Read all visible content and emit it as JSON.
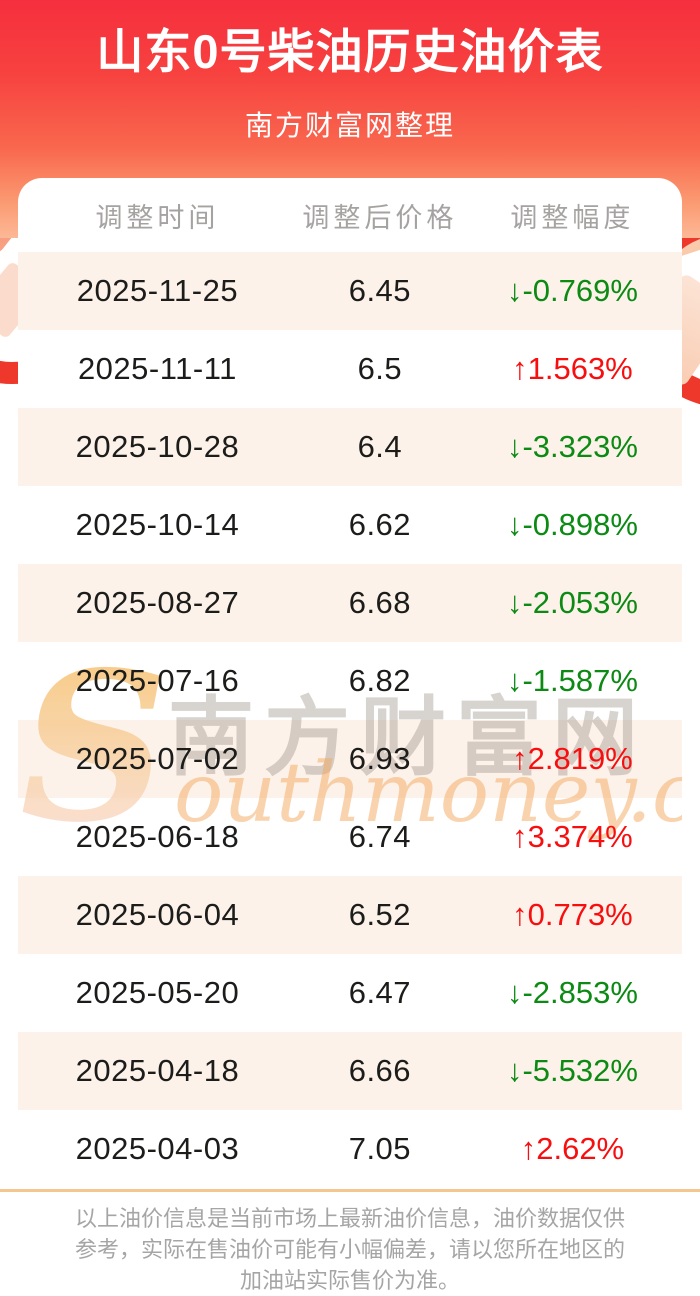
{
  "header": {
    "title": "山东0号柴油历史油价表",
    "subtitle": "南方财富网整理",
    "gradient_top_color": "#f62f3e",
    "gradient_bottom_color": "#fcb896"
  },
  "table": {
    "columns": [
      "调整时间",
      "调整后价格",
      "调整幅度"
    ],
    "rows": [
      {
        "date": "2025-11-25",
        "price": "6.45",
        "change": "-0.769%",
        "direction": "down"
      },
      {
        "date": "2025-11-11",
        "price": "6.5",
        "change": "1.563%",
        "direction": "up"
      },
      {
        "date": "2025-10-28",
        "price": "6.4",
        "change": "-3.323%",
        "direction": "down"
      },
      {
        "date": "2025-10-14",
        "price": "6.62",
        "change": "-0.898%",
        "direction": "down"
      },
      {
        "date": "2025-08-27",
        "price": "6.68",
        "change": "-2.053%",
        "direction": "down"
      },
      {
        "date": "2025-07-16",
        "price": "6.82",
        "change": "-1.587%",
        "direction": "down"
      },
      {
        "date": "2025-07-02",
        "price": "6.93",
        "change": "2.819%",
        "direction": "up"
      },
      {
        "date": "2025-06-18",
        "price": "6.74",
        "change": "3.374%",
        "direction": "up"
      },
      {
        "date": "2025-06-04",
        "price": "6.52",
        "change": "0.773%",
        "direction": "up"
      },
      {
        "date": "2025-05-20",
        "price": "6.47",
        "change": "-2.853%",
        "direction": "down"
      },
      {
        "date": "2025-04-18",
        "price": "6.66",
        "change": "-5.532%",
        "direction": "down"
      },
      {
        "date": "2025-04-03",
        "price": "7.05",
        "change": "2.62%",
        "direction": "up"
      }
    ],
    "up_arrow": "↑",
    "down_arrow": "↓",
    "up_color": "#f80e0e",
    "down_color": "#0c8a14",
    "stripe_color": "#fcf2ea"
  },
  "chart_data": {
    "type": "table",
    "title": "山东0号柴油历史油价表",
    "columns": [
      "调整时间",
      "调整后价格",
      "调整幅度"
    ],
    "x": [
      "2025-11-25",
      "2025-11-11",
      "2025-10-28",
      "2025-10-14",
      "2025-08-27",
      "2025-07-16",
      "2025-07-02",
      "2025-06-18",
      "2025-06-04",
      "2025-05-20",
      "2025-04-18",
      "2025-04-03"
    ],
    "series": [
      {
        "name": "调整后价格",
        "values": [
          6.45,
          6.5,
          6.4,
          6.62,
          6.68,
          6.82,
          6.93,
          6.74,
          6.52,
          6.47,
          6.66,
          7.05
        ]
      },
      {
        "name": "调整幅度(%)",
        "values": [
          -0.769,
          1.563,
          -3.323,
          -0.898,
          -2.053,
          -1.587,
          2.819,
          3.374,
          0.773,
          -2.853,
          -5.532,
          2.62
        ]
      }
    ]
  },
  "watermark": {
    "initial": "S",
    "cjk": "南方财富网",
    "latin": "outhmoney.com"
  },
  "footer": {
    "lines": [
      "以上油价信息是当前市场上最新油价信息，油价数据仅供",
      "参考，实际在售油价可能有小幅偏差，请以您所在地区的",
      "加油站实际售价为准。"
    ]
  }
}
